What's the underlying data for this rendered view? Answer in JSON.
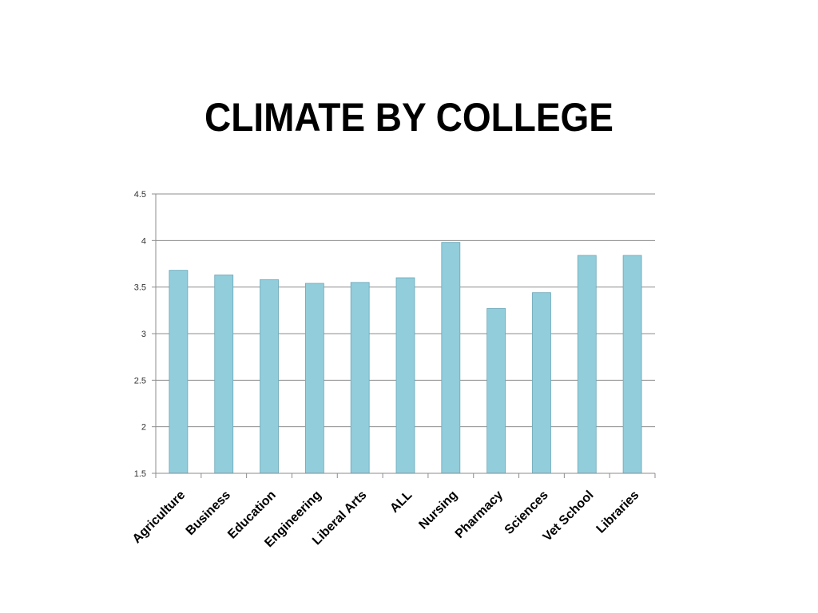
{
  "slide": {
    "title": "CLIMATE BY COLLEGE"
  },
  "chart_data": {
    "type": "bar",
    "title": "",
    "xlabel": "",
    "ylabel": "",
    "categories": [
      "Agriculture",
      "Business",
      "Education",
      "Engineering",
      "Liberal Arts",
      "ALL",
      "Nursing",
      "Pharmacy",
      "Sciences",
      "Vet School",
      "Libraries"
    ],
    "values": [
      3.68,
      3.63,
      3.58,
      3.54,
      3.55,
      3.6,
      3.98,
      3.27,
      3.44,
      3.84,
      3.84
    ],
    "ylim": [
      1.5,
      4.5
    ],
    "yticks": [
      "1.5",
      "2",
      "2.5",
      "3",
      "3.5",
      "4",
      "4.5"
    ],
    "grid": true,
    "legend": "none",
    "colors": {
      "bar_fill": "#92CDDC",
      "bar_stroke": "#6BA7B8",
      "grid": "#8C8C8C"
    }
  }
}
